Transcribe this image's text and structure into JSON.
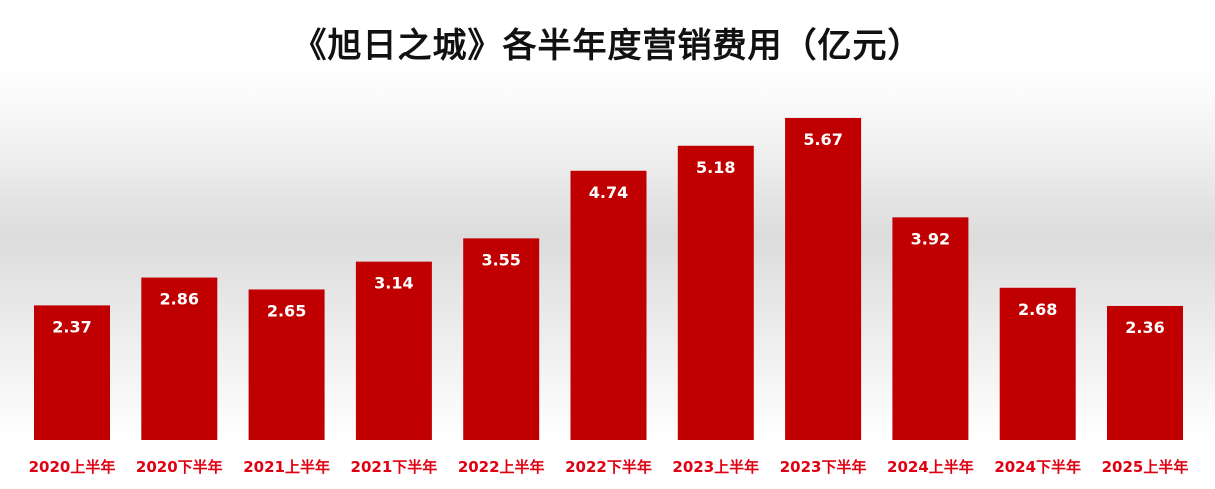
{
  "chart_data": {
    "type": "bar",
    "title": "《旭日之城》各半年度营销费用（亿元）",
    "categories": [
      "2020上半年",
      "2020下半年",
      "2021上半年",
      "2021下半年",
      "2022上半年",
      "2022下半年",
      "2023上半年",
      "2023下半年",
      "2024上半年",
      "2024下半年",
      "2025上半年"
    ],
    "values": [
      2.37,
      2.86,
      2.65,
      3.14,
      3.55,
      4.74,
      5.18,
      5.67,
      3.92,
      2.68,
      2.36
    ],
    "data_labels": [
      "2.37",
      "2.86",
      "2.65",
      "3.14",
      "3.55",
      "4.74",
      "5.18",
      "5.67",
      "3.92",
      "2.68",
      "2.36"
    ],
    "xlabel": "",
    "ylabel": "",
    "ylim": [
      0,
      6
    ],
    "grid": false,
    "legend": "none",
    "colors": {
      "bar": "#C00000",
      "label": "#E00012",
      "value_text": "#ffffff"
    }
  }
}
